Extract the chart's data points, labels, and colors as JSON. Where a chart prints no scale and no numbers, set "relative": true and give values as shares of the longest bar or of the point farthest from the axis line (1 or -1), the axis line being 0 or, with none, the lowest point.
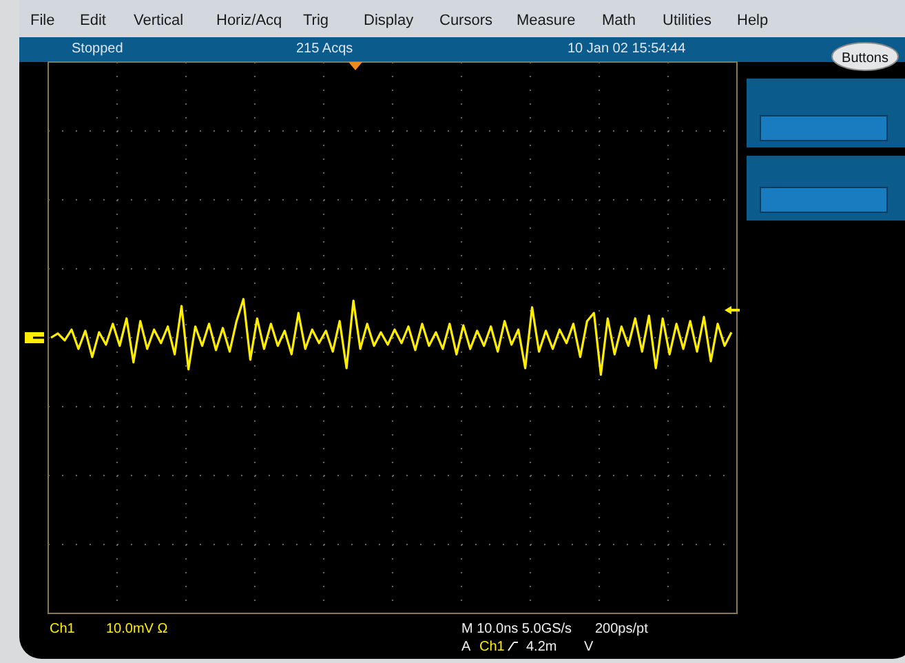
{
  "chart_data": {
    "type": "line",
    "relative": true,
    "grid": true,
    "marker": "none",
    "line_style": "solid",
    "categories": [
      null,
      null,
      null,
      null,
      null,
      null,
      null,
      null,
      null,
      null,
      null,
      null,
      null,
      null,
      null,
      null,
      null,
      null,
      null,
      null,
      null,
      null,
      null,
      null,
      null,
      null,
      null,
      null,
      null,
      null,
      null,
      null,
      null,
      null,
      null,
      null,
      null,
      null,
      null,
      null,
      null,
      null,
      null,
      null,
      null,
      null,
      null,
      null,
      null,
      null,
      null,
      null,
      null,
      null,
      null,
      null,
      null,
      null,
      null,
      null,
      null,
      null,
      null,
      null,
      null,
      null,
      null,
      null,
      null,
      null,
      null,
      null,
      null,
      null,
      null,
      null,
      null,
      null,
      null,
      null,
      null,
      null,
      null,
      null,
      null,
      null,
      null,
      null,
      null,
      null,
      null,
      null,
      null,
      null,
      null,
      null,
      null,
      null,
      null,
      null
    ],
    "series": [
      {
        "color": "#ffee00",
        "values": [
          0,
          0.11,
          -0.07,
          0.21,
          -0.29,
          0.18,
          -0.5,
          0.14,
          -0.18,
          0.36,
          -0.21,
          0.5,
          -0.64,
          0.43,
          -0.29,
          0.21,
          -0.14,
          0.29,
          -0.43,
          0.82,
          -0.82,
          0.29,
          -0.21,
          0.36,
          -0.32,
          0.25,
          -0.36,
          0.43,
          1,
          -0.57,
          0.5,
          -0.29,
          0.36,
          -0.21,
          0.18,
          -0.43,
          0.64,
          -0.29,
          0.21,
          -0.14,
          0.18,
          -0.36,
          0.43,
          -0.79,
          0.96,
          -0.29,
          0.36,
          -0.21,
          0.14,
          -0.18,
          0.21,
          -0.14,
          0.29,
          -0.32,
          0.36,
          -0.21,
          0.14,
          -0.29,
          0.36,
          -0.43,
          0.32,
          -0.29,
          0.18,
          -0.21,
          0.29,
          -0.36,
          0.43,
          -0.18,
          0.21,
          -0.79,
          0.79,
          -0.36,
          0.18,
          -0.29,
          0.21,
          -0.14,
          0.36,
          -0.5,
          0.43,
          0.64,
          -0.96,
          0.5,
          -0.43,
          0.29,
          -0.21,
          0.5,
          -0.36,
          0.57,
          -0.79,
          0.5,
          -0.43,
          0.36,
          -0.29,
          0.43,
          -0.36,
          0.54,
          -0.61,
          0.36,
          -0.21,
          0.14
        ]
      }
    ],
    "annotations": [
      "File",
      "Edit",
      "Vertical",
      "Horiz/Acq",
      "Trig",
      "Display",
      "Cursors",
      "Measure",
      "Math",
      "Utilities",
      "Help",
      "Stopped",
      "215 Acqs",
      "10 Jan 02 15:54:44",
      "Buttons",
      "Ch1",
      "10.0mV Ω",
      "M 10.0ns 5.0GS/s",
      "200ps/pt",
      "A",
      "Ch1",
      "4.2m",
      "V"
    ]
  }
}
